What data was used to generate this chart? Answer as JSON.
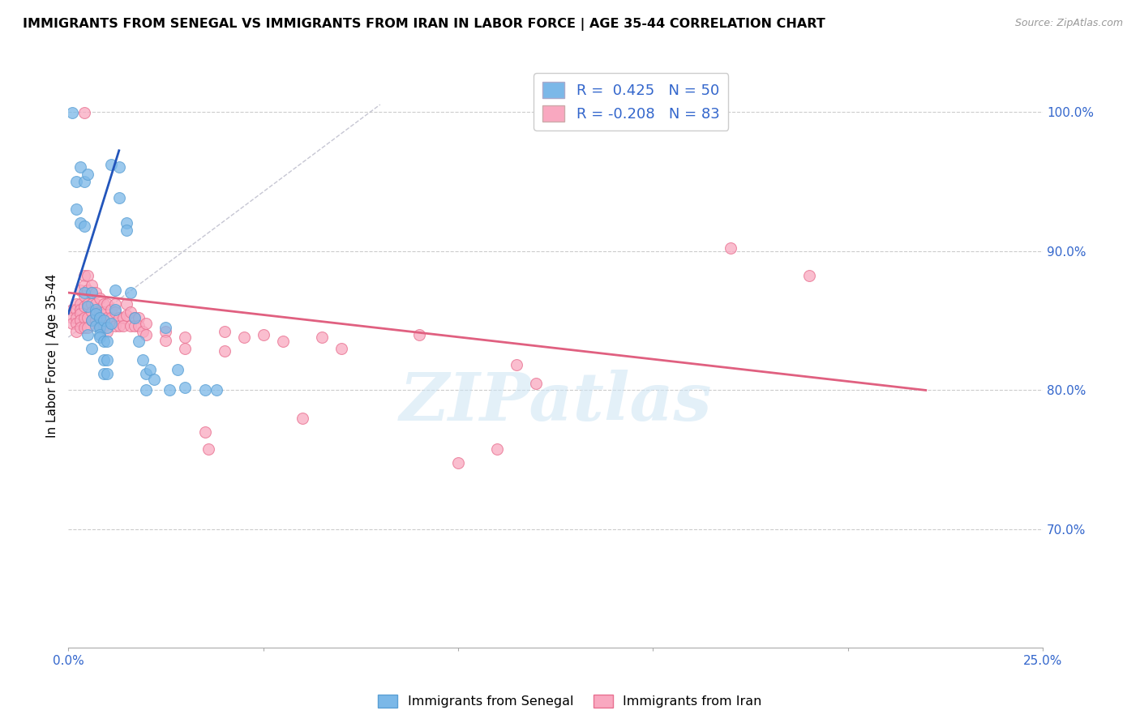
{
  "title": "IMMIGRANTS FROM SENEGAL VS IMMIGRANTS FROM IRAN IN LABOR FORCE | AGE 35-44 CORRELATION CHART",
  "source": "Source: ZipAtlas.com",
  "ylabel": "In Labor Force | Age 35-44",
  "xlim": [
    0.0,
    0.25
  ],
  "ylim": [
    0.615,
    1.035
  ],
  "xtick_positions": [
    0.0,
    0.05,
    0.1,
    0.15,
    0.2,
    0.25
  ],
  "xticklabels": [
    "0.0%",
    "",
    "",
    "",
    "",
    "25.0%"
  ],
  "yticks_right": [
    0.7,
    0.8,
    0.9,
    1.0
  ],
  "ytick_labels_right": [
    "70.0%",
    "80.0%",
    "90.0%",
    "100.0%"
  ],
  "senegal_color": "#7bb8e8",
  "senegal_edge": "#5a9fd4",
  "iran_color": "#f9a8c0",
  "iran_edge": "#e87090",
  "right_axis_color": "#3366cc",
  "grid_color": "#cccccc",
  "watermark": "ZIPatlas",
  "senegal_R": 0.425,
  "senegal_N": 50,
  "iran_R": -0.208,
  "iran_N": 83,
  "blue_line_x": [
    0.0,
    0.013
  ],
  "blue_line_y": [
    0.855,
    0.972
  ],
  "pink_line_x": [
    0.0,
    0.22
  ],
  "pink_line_y": [
    0.87,
    0.8
  ],
  "dash_line_x": [
    0.0,
    0.08
  ],
  "dash_line_y": [
    0.838,
    1.005
  ],
  "senegal_scatter": [
    [
      0.001,
      0.999
    ],
    [
      0.002,
      0.95
    ],
    [
      0.002,
      0.93
    ],
    [
      0.003,
      0.96
    ],
    [
      0.003,
      0.92
    ],
    [
      0.004,
      0.95
    ],
    [
      0.004,
      0.87
    ],
    [
      0.004,
      0.918
    ],
    [
      0.005,
      0.955
    ],
    [
      0.005,
      0.86
    ],
    [
      0.005,
      0.84
    ],
    [
      0.006,
      0.87
    ],
    [
      0.006,
      0.85
    ],
    [
      0.006,
      0.83
    ],
    [
      0.007,
      0.858
    ],
    [
      0.007,
      0.855
    ],
    [
      0.007,
      0.846
    ],
    [
      0.008,
      0.852
    ],
    [
      0.008,
      0.845
    ],
    [
      0.008,
      0.84
    ],
    [
      0.008,
      0.838
    ],
    [
      0.009,
      0.85
    ],
    [
      0.009,
      0.835
    ],
    [
      0.009,
      0.822
    ],
    [
      0.009,
      0.812
    ],
    [
      0.01,
      0.845
    ],
    [
      0.01,
      0.835
    ],
    [
      0.01,
      0.822
    ],
    [
      0.01,
      0.812
    ],
    [
      0.011,
      0.962
    ],
    [
      0.011,
      0.848
    ],
    [
      0.012,
      0.872
    ],
    [
      0.012,
      0.858
    ],
    [
      0.013,
      0.96
    ],
    [
      0.013,
      0.938
    ],
    [
      0.015,
      0.92
    ],
    [
      0.015,
      0.915
    ],
    [
      0.016,
      0.87
    ],
    [
      0.017,
      0.852
    ],
    [
      0.018,
      0.835
    ],
    [
      0.019,
      0.822
    ],
    [
      0.02,
      0.812
    ],
    [
      0.02,
      0.8
    ],
    [
      0.021,
      0.815
    ],
    [
      0.022,
      0.808
    ],
    [
      0.025,
      0.845
    ],
    [
      0.026,
      0.8
    ],
    [
      0.028,
      0.815
    ],
    [
      0.03,
      0.802
    ],
    [
      0.035,
      0.8
    ],
    [
      0.038,
      0.8
    ]
  ],
  "iran_scatter": [
    [
      0.001,
      0.858
    ],
    [
      0.001,
      0.852
    ],
    [
      0.001,
      0.848
    ],
    [
      0.002,
      0.862
    ],
    [
      0.002,
      0.858
    ],
    [
      0.002,
      0.852
    ],
    [
      0.002,
      0.848
    ],
    [
      0.002,
      0.842
    ],
    [
      0.003,
      0.872
    ],
    [
      0.003,
      0.862
    ],
    [
      0.003,
      0.858
    ],
    [
      0.003,
      0.855
    ],
    [
      0.003,
      0.85
    ],
    [
      0.003,
      0.845
    ],
    [
      0.004,
      0.882
    ],
    [
      0.004,
      0.875
    ],
    [
      0.004,
      0.868
    ],
    [
      0.004,
      0.86
    ],
    [
      0.004,
      0.852
    ],
    [
      0.004,
      0.845
    ],
    [
      0.005,
      0.882
    ],
    [
      0.005,
      0.872
    ],
    [
      0.005,
      0.862
    ],
    [
      0.005,
      0.852
    ],
    [
      0.005,
      0.845
    ],
    [
      0.006,
      0.875
    ],
    [
      0.006,
      0.87
    ],
    [
      0.006,
      0.862
    ],
    [
      0.006,
      0.856
    ],
    [
      0.006,
      0.85
    ],
    [
      0.007,
      0.87
    ],
    [
      0.007,
      0.862
    ],
    [
      0.007,
      0.856
    ],
    [
      0.007,
      0.85
    ],
    [
      0.008,
      0.866
    ],
    [
      0.008,
      0.856
    ],
    [
      0.008,
      0.846
    ],
    [
      0.009,
      0.862
    ],
    [
      0.009,
      0.856
    ],
    [
      0.009,
      0.846
    ],
    [
      0.01,
      0.862
    ],
    [
      0.01,
      0.852
    ],
    [
      0.01,
      0.842
    ],
    [
      0.011,
      0.858
    ],
    [
      0.011,
      0.852
    ],
    [
      0.012,
      0.862
    ],
    [
      0.012,
      0.856
    ],
    [
      0.012,
      0.846
    ],
    [
      0.013,
      0.852
    ],
    [
      0.013,
      0.846
    ],
    [
      0.014,
      0.852
    ],
    [
      0.014,
      0.846
    ],
    [
      0.015,
      0.862
    ],
    [
      0.015,
      0.854
    ],
    [
      0.016,
      0.856
    ],
    [
      0.016,
      0.846
    ],
    [
      0.017,
      0.852
    ],
    [
      0.017,
      0.846
    ],
    [
      0.018,
      0.852
    ],
    [
      0.018,
      0.846
    ],
    [
      0.019,
      0.842
    ],
    [
      0.02,
      0.848
    ],
    [
      0.02,
      0.84
    ],
    [
      0.025,
      0.842
    ],
    [
      0.025,
      0.836
    ],
    [
      0.03,
      0.838
    ],
    [
      0.03,
      0.83
    ],
    [
      0.035,
      0.77
    ],
    [
      0.036,
      0.758
    ],
    [
      0.04,
      0.842
    ],
    [
      0.04,
      0.828
    ],
    [
      0.045,
      0.838
    ],
    [
      0.05,
      0.84
    ],
    [
      0.055,
      0.835
    ],
    [
      0.06,
      0.78
    ],
    [
      0.065,
      0.838
    ],
    [
      0.07,
      0.83
    ],
    [
      0.09,
      0.84
    ],
    [
      0.1,
      0.748
    ],
    [
      0.11,
      0.758
    ],
    [
      0.115,
      0.818
    ],
    [
      0.12,
      0.805
    ],
    [
      0.004,
      0.999
    ],
    [
      0.17,
      0.902
    ],
    [
      0.19,
      0.882
    ]
  ]
}
